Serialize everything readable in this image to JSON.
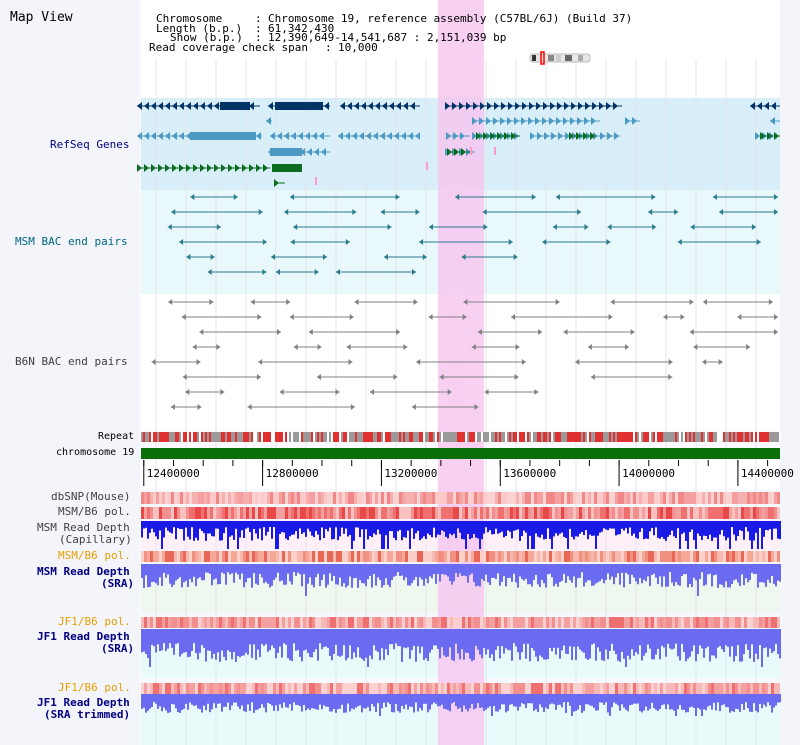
{
  "view_title": "Map View",
  "info": {
    "chromosome_label": "Chromosome",
    "chromosome_value": "Chromosome 19, reference assembly (C57BL/6J) (Build 37)",
    "length_label": "Length (b.p.)",
    "length_value": "61,342,430",
    "show_label": "Show (b.p.)",
    "show_value": "12,390,649-14,541,687 : 2,151,039 bp",
    "coverage_label": "Read coverage check span",
    "coverage_value": "10,000"
  },
  "tracks": {
    "refseq": "RefSeq Genes",
    "msm_bac": "MSM BAC end pairs",
    "b6n_bac": "B6N BAC end pairs",
    "repeat": "Repeat",
    "chromosome": "chromosome 19",
    "dbsnp": "dbSNP(Mouse)",
    "msm_b6_pol_1": "MSM/B6 pol.",
    "msm_depth_cap_1": "MSM Read Depth",
    "msm_depth_cap_2": "(Capillary)",
    "msm_b6_pol_2": "MSM/B6 pol.",
    "msm_depth_sra_1": "MSM Read Depth",
    "msm_depth_sra_2": "(SRA)",
    "jf1_b6_pol_1": "JF1/B6 pol.",
    "jf1_depth_sra_1": "JF1 Read Depth",
    "jf1_depth_sra_2": "(SRA)",
    "jf1_b6_pol_2": "JF1/B6 pol.",
    "jf1_depth_trim_1": "JF1 Read Depth",
    "jf1_depth_trim_2": "(SRA trimmed)"
  },
  "axis": {
    "ticks": [
      12400000,
      12800000,
      13200000,
      13600000,
      14000000,
      14400000
    ],
    "tick_labels": [
      "12400000",
      "12800000",
      "13200000",
      "13600000",
      "14000000",
      "14400000"
    ],
    "range": [
      12390649,
      14541687
    ]
  },
  "highlight_region": [
    13390000,
    13545000
  ],
  "colors": {
    "refseq_dark": "#003366",
    "refseq_light": "#4a9ac4",
    "refseq_green": "#0a6e1e",
    "msm_bac": "#2a7b8c",
    "b6n_bac": "#808080",
    "repeat_red": "#e03030",
    "repeat_gray": "#9a9a9a",
    "chromosome": "#0a6e0a",
    "depth_capillary": "#1a1ae6",
    "depth_sra": "#6b6bf2",
    "highlight": "#f6c8f0",
    "label_blue": "#000080",
    "label_orange": "#e6a000",
    "label_teal": "#006680"
  }
}
